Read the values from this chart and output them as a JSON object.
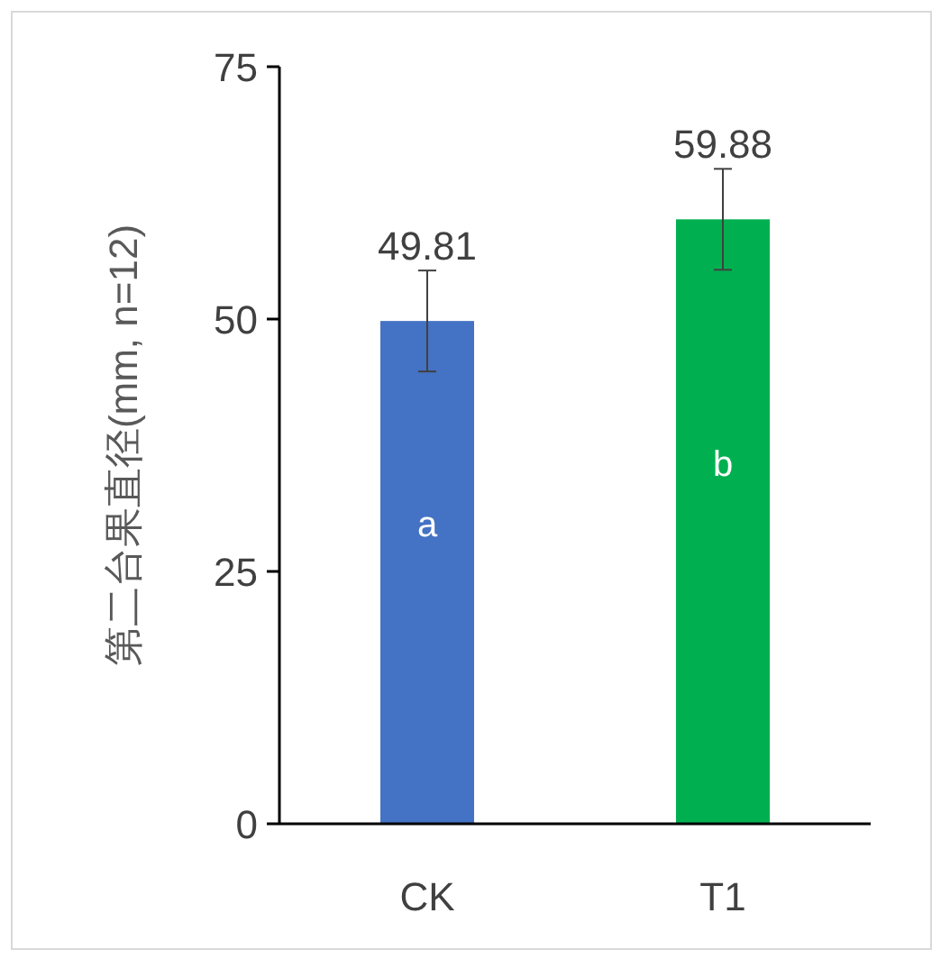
{
  "chart_data": {
    "type": "bar",
    "ylabel": "第二台果直径(mm, n=12)",
    "categories": [
      "CK",
      "T1"
    ],
    "values": [
      49.81,
      59.88
    ],
    "colors": [
      "#4472c4",
      "#00b050"
    ],
    "errors": [
      5,
      5
    ],
    "data_labels": true,
    "ylim": [
      0,
      75
    ],
    "yticks": [
      0,
      25,
      50,
      75
    ],
    "annotations": [
      "a",
      "b"
    ]
  }
}
